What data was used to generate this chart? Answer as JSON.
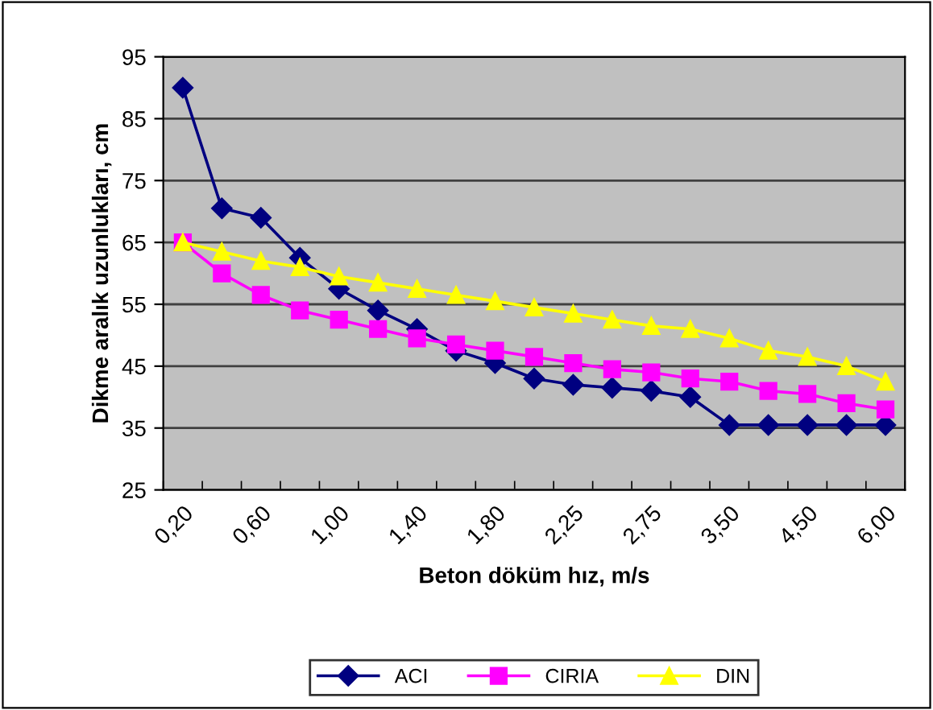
{
  "chart_data": {
    "type": "line",
    "xlabel": "Beton döküm hız, m/s",
    "ylabel": "Dikme aralık uzunlukları, cm",
    "categories": [
      "0,20",
      null,
      "0,60",
      null,
      "1,00",
      null,
      "1,40",
      null,
      "1,80",
      null,
      "2,25",
      null,
      "2,75",
      null,
      "3,50",
      null,
      "4,50",
      null,
      "6,00"
    ],
    "series": [
      {
        "name": "ACI",
        "color": "#000080",
        "marker": "diamond",
        "values": [
          90,
          70.5,
          69,
          62.5,
          57.5,
          54,
          51,
          47.5,
          45.5,
          43,
          42,
          41.5,
          41,
          40,
          35.5,
          35.5,
          35.5,
          35.5,
          35.5
        ]
      },
      {
        "name": "CIRIA",
        "color": "#ff00ff",
        "marker": "square",
        "values": [
          65,
          60,
          56.5,
          54,
          52.5,
          51,
          49.5,
          48.5,
          47.5,
          46.5,
          45.5,
          44.5,
          44,
          43,
          42.5,
          41,
          40.5,
          39,
          38
        ]
      },
      {
        "name": "DIN",
        "color": "#ffff00",
        "marker": "triangle",
        "values": [
          65,
          63.5,
          62,
          61,
          59.5,
          58.5,
          57.5,
          56.5,
          55.5,
          54.5,
          53.5,
          52.5,
          51.5,
          51,
          49.5,
          47.5,
          46.5,
          45,
          42.5
        ]
      }
    ],
    "ylim": [
      25,
      95
    ],
    "yticks": [
      25,
      35,
      45,
      55,
      65,
      75,
      85,
      95
    ],
    "grid": "y",
    "legend": "bottom"
  }
}
